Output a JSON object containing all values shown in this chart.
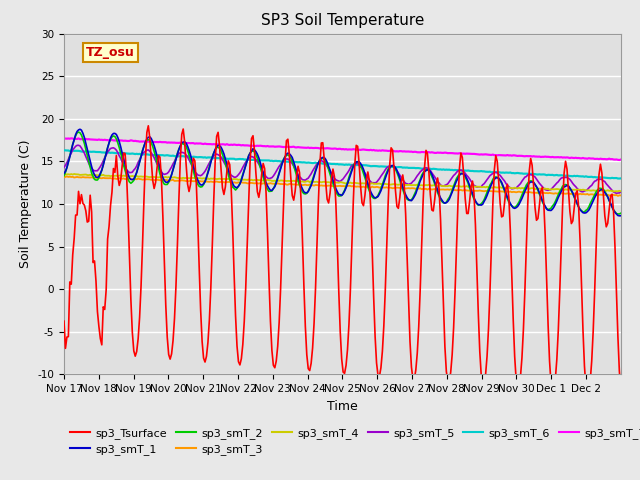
{
  "title": "SP3 Soil Temperature",
  "xlabel": "Time",
  "ylabel": "Soil Temperature (C)",
  "ylim": [
    -10,
    30
  ],
  "x_tick_labels": [
    "Nov 17",
    "Nov 18",
    "Nov 19",
    "Nov 20",
    "Nov 21",
    "Nov 22",
    "Nov 23",
    "Nov 24",
    "Nov 25",
    "Nov 26",
    "Nov 27",
    "Nov 28",
    "Nov 29",
    "Nov 30",
    "Dec 1",
    "Dec 2"
  ],
  "series_colors": {
    "sp3_Tsurface": "#FF0000",
    "sp3_smT_1": "#0000CC",
    "sp3_smT_2": "#00CC00",
    "sp3_smT_3": "#FF9900",
    "sp3_smT_4": "#CCCC00",
    "sp3_smT_5": "#9900CC",
    "sp3_smT_6": "#00CCCC",
    "sp3_smT_7": "#FF00FF"
  },
  "tz_label": "TZ_osu",
  "tz_box_color": "#FFFFCC",
  "tz_text_color": "#CC0000",
  "tz_box_edge_color": "#CC8800",
  "background_color": "#E8E8E8",
  "plot_bg_color": "#E0E0E0",
  "grid_color": "#FFFFFF",
  "title_fontsize": 11,
  "axis_label_fontsize": 9,
  "tick_fontsize": 7.5,
  "legend_fontsize": 8,
  "line_lw": 1.2
}
